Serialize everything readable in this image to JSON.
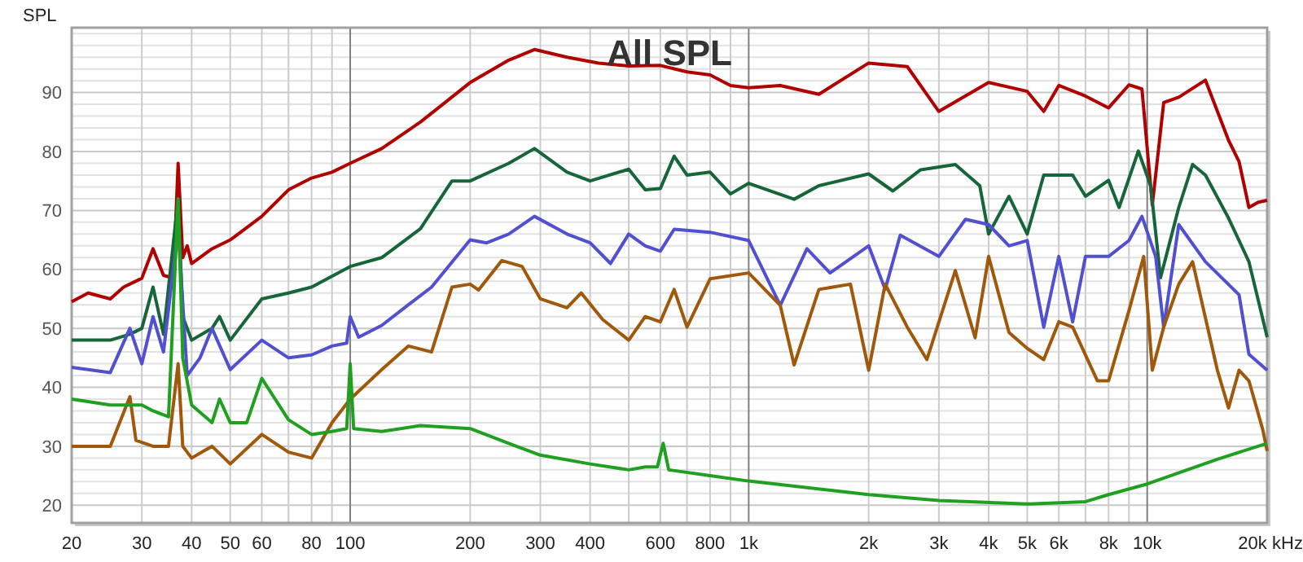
{
  "chart_data": {
    "type": "line",
    "title": "All SPL",
    "ylabel": "SPL",
    "log": "x",
    "xlabel": "kHz",
    "grid": true,
    "marker": "none",
    "line_style": "solid",
    "xlim": [
      20,
      20000
    ],
    "ylim": [
      17,
      101
    ],
    "xticks": [
      20,
      30,
      40,
      50,
      60,
      {
        "value": 70,
        "label": null
      },
      80,
      {
        "value": 90,
        "label": null
      },
      100,
      200,
      300,
      400,
      {
        "value": 500,
        "label": null
      },
      600,
      {
        "value": 700,
        "label": null
      },
      800,
      {
        "value": 900,
        "label": null
      },
      {
        "value": 1000,
        "label": "1k"
      },
      {
        "value": 2000,
        "label": "2k"
      },
      {
        "value": 3000,
        "label": "3k"
      },
      {
        "value": 4000,
        "label": "4k"
      },
      {
        "value": 5000,
        "label": "5k"
      },
      {
        "value": 6000,
        "label": "6k"
      },
      {
        "value": 7000,
        "label": null
      },
      {
        "value": 8000,
        "label": "8k"
      },
      {
        "value": 9000,
        "label": null
      },
      {
        "value": 10000,
        "label": "10k"
      },
      {
        "value": 20000,
        "label": "20k"
      }
    ],
    "yticks": [
      20,
      {
        "value": 22,
        "label": null
      },
      {
        "value": 24,
        "label": null
      },
      {
        "value": 26,
        "label": null
      },
      {
        "value": 28,
        "label": null
      },
      30,
      {
        "value": 32,
        "label": null
      },
      {
        "value": 34,
        "label": null
      },
      {
        "value": 36,
        "label": null
      },
      {
        "value": 38,
        "label": null
      },
      40,
      {
        "value": 42,
        "label": null
      },
      {
        "value": 44,
        "label": null
      },
      {
        "value": 46,
        "label": null
      },
      {
        "value": 48,
        "label": null
      },
      50,
      {
        "value": 52,
        "label": null
      },
      {
        "value": 54,
        "label": null
      },
      {
        "value": 56,
        "label": null
      },
      {
        "value": 58,
        "label": null
      },
      60,
      {
        "value": 62,
        "label": null
      },
      {
        "value": 64,
        "label": null
      },
      {
        "value": 66,
        "label": null
      },
      {
        "value": 68,
        "label": null
      },
      70,
      {
        "value": 72,
        "label": null
      },
      {
        "value": 74,
        "label": null
      },
      {
        "value": 76,
        "label": null
      },
      {
        "value": 78,
        "label": null
      },
      80,
      {
        "value": 82,
        "label": null
      },
      {
        "value": 84,
        "label": null
      },
      {
        "value": 86,
        "label": null
      },
      {
        "value": 88,
        "label": null
      },
      90,
      {
        "value": 92,
        "label": null
      },
      {
        "value": 94,
        "label": null
      },
      {
        "value": 96,
        "label": null
      },
      {
        "value": 98,
        "label": null
      },
      {
        "value": 100,
        "label": null
      }
    ],
    "series": [
      {
        "color": "#b00000",
        "x": [
          20,
          22,
          25,
          27,
          30,
          32,
          34,
          36,
          37,
          38,
          39,
          40,
          45,
          50,
          60,
          70,
          80,
          90,
          100,
          120,
          150,
          200,
          250,
          290,
          350,
          420,
          500,
          600,
          700,
          800,
          900,
          1000,
          1200,
          1500,
          2000,
          2500,
          3000,
          4000,
          5000,
          5500,
          6000,
          7000,
          8000,
          9000,
          9700,
          10300,
          11000,
          12000,
          14000,
          16000,
          17000,
          18000,
          19000,
          20000
        ],
        "values": [
          54.5,
          56,
          55,
          57,
          58.5,
          63.5,
          59,
          58.5,
          78,
          62,
          64,
          61,
          63.5,
          65,
          69,
          73.5,
          75.5,
          76.5,
          78,
          80.5,
          85,
          91.7,
          95.5,
          97.3,
          96,
          95,
          94.5,
          94.6,
          93.5,
          93,
          91.2,
          90.8,
          91.2,
          89.7,
          95,
          94.4,
          86.8,
          91.7,
          90.2,
          86.8,
          91.2,
          89.4,
          87.4,
          91.3,
          90.6,
          70.9,
          88.3,
          89.2,
          92.1,
          81.9,
          78.3,
          70.5,
          71.4,
          71.7
        ]
      },
      {
        "color": "#17663a",
        "x": [
          20,
          25,
          28,
          30,
          32,
          34,
          37,
          38,
          40,
          45,
          47,
          50,
          60,
          70,
          80,
          100,
          120,
          150,
          180,
          200,
          250,
          290,
          350,
          400,
          500,
          550,
          600,
          650,
          700,
          800,
          900,
          1000,
          1300,
          1500,
          2000,
          2300,
          2700,
          3300,
          3800,
          4000,
          4500,
          5000,
          5500,
          6500,
          7000,
          8000,
          8500,
          9500,
          10200,
          10800,
          12000,
          13000,
          14000,
          16000,
          18000,
          20000
        ],
        "values": [
          48,
          48,
          49,
          50,
          57,
          49,
          72,
          52,
          48,
          50,
          52,
          48,
          55,
          56,
          57,
          60.5,
          62,
          66.9,
          75,
          75,
          78,
          80.5,
          76.5,
          75,
          77,
          73.5,
          73.7,
          79.2,
          76,
          76.5,
          72.8,
          74.6,
          71.9,
          74.2,
          76.2,
          73.3,
          76.9,
          77.8,
          74.2,
          66,
          72.4,
          66,
          76,
          76,
          72.4,
          75.1,
          70.5,
          80.1,
          74.2,
          58.6,
          70.5,
          77.8,
          76,
          68.7,
          61.3,
          48.5
        ]
      },
      {
        "color": "#5050d0",
        "x": [
          20,
          22,
          25,
          28,
          30,
          32,
          34,
          37,
          39,
          42,
          45,
          50,
          60,
          70,
          80,
          90,
          98,
          100,
          105,
          120,
          140,
          160,
          200,
          220,
          250,
          290,
          350,
          400,
          450,
          500,
          550,
          600,
          650,
          800,
          1000,
          1200,
          1400,
          1600,
          2000,
          2200,
          2400,
          3000,
          3500,
          4000,
          4500,
          5000,
          5500,
          6000,
          6500,
          7000,
          8000,
          9000,
          9700,
          10500,
          11000,
          12000,
          14000,
          17000,
          18000,
          20000
        ],
        "values": [
          43.4,
          43,
          42.5,
          50,
          44,
          52,
          46,
          67,
          42,
          45,
          50,
          43,
          48,
          45,
          45.5,
          47,
          47.5,
          52,
          48.5,
          50.5,
          54,
          57,
          65,
          64.5,
          66,
          69,
          66,
          64.5,
          61,
          66,
          64,
          63.1,
          66.8,
          66.3,
          64.9,
          53.9,
          63.5,
          59.4,
          64,
          56.6,
          65.8,
          62.2,
          68.5,
          67.6,
          64,
          64.9,
          50.2,
          62.2,
          51.1,
          62.2,
          62.2,
          64.9,
          69,
          62.2,
          50.2,
          67.6,
          61.3,
          55.7,
          45.6,
          42.9
        ]
      },
      {
        "color": "#a0580a",
        "x": [
          20,
          25,
          28,
          29,
          32,
          35,
          37,
          38,
          40,
          45,
          50,
          60,
          70,
          80,
          90,
          100,
          120,
          140,
          160,
          180,
          200,
          210,
          240,
          270,
          300,
          350,
          380,
          430,
          500,
          550,
          600,
          650,
          700,
          800,
          1000,
          1200,
          1300,
          1500,
          1800,
          2000,
          2200,
          2500,
          2800,
          3300,
          3700,
          4000,
          4500,
          5000,
          5500,
          6000,
          6500,
          7500,
          8000,
          9000,
          9800,
          10300,
          11000,
          12000,
          13000,
          15000,
          16000,
          17000,
          18000,
          19500,
          20000
        ],
        "values": [
          30,
          30,
          38.4,
          31,
          30,
          30,
          44,
          30,
          28,
          30,
          27,
          32,
          29,
          28,
          34,
          38,
          43,
          47,
          46,
          57,
          57.5,
          56.5,
          61.5,
          60.5,
          55,
          53.5,
          56,
          51.5,
          48,
          52,
          51.1,
          56.6,
          50.2,
          58.4,
          59.4,
          53.9,
          43.8,
          56.6,
          57.5,
          42.9,
          57.5,
          50.2,
          44.7,
          59.8,
          48.4,
          62.2,
          49.3,
          46.6,
          44.7,
          51.1,
          50.2,
          41.1,
          41.1,
          53,
          62.2,
          42.9,
          50.2,
          57.5,
          61.3,
          42.9,
          36.5,
          42.9,
          41.1,
          32.8,
          29.2
        ]
      },
      {
        "color": "#20a020",
        "x": [
          20,
          25,
          30,
          32,
          35,
          37,
          38,
          40,
          45,
          47,
          50,
          55,
          60,
          70,
          80,
          90,
          98,
          100,
          102,
          120,
          150,
          200,
          250,
          300,
          400,
          500,
          550,
          590,
          610,
          630,
          800,
          1000,
          2000,
          3000,
          5000,
          7000,
          8000,
          10000,
          15000,
          20000
        ],
        "values": [
          38,
          37,
          37,
          36,
          35,
          72,
          45,
          37,
          34,
          38,
          34,
          34,
          41.5,
          34.5,
          32,
          32.5,
          33,
          44,
          33,
          32.5,
          33.5,
          33,
          30.5,
          28.5,
          27,
          26,
          26.5,
          26.5,
          30.5,
          26,
          25,
          24.1,
          21.8,
          20.8,
          20.2,
          20.6,
          21.8,
          23.6,
          27.8,
          30.5
        ]
      }
    ]
  }
}
